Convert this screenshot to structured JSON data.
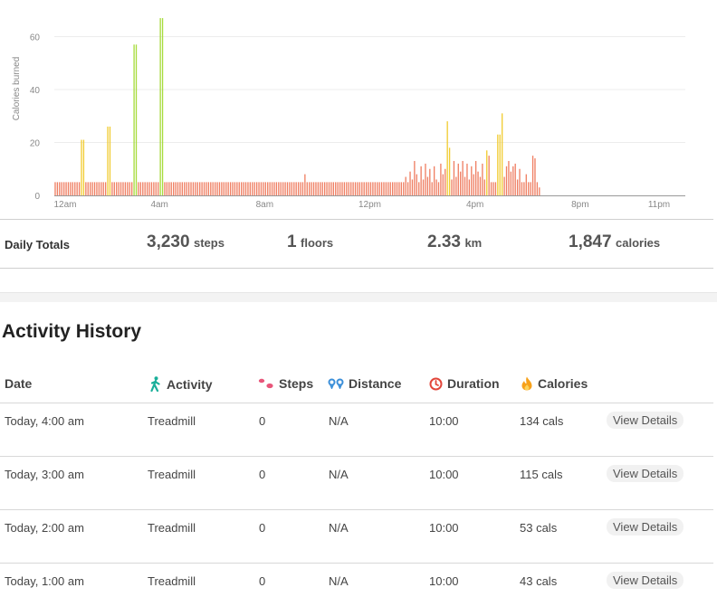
{
  "chart_data": {
    "type": "bar",
    "ylabel": "Calories burned",
    "xlabel": "",
    "ylim": [
      0,
      68
    ],
    "yticks": [
      0,
      20,
      40,
      60
    ],
    "xticks": [
      "12am",
      "4am",
      "8am",
      "12pm",
      "4pm",
      "8pm",
      "11pm"
    ],
    "interval_minutes": 5,
    "grid": true,
    "bars": [
      {
        "time": "0:00",
        "value": 5
      },
      {
        "time": "0:05",
        "value": 5
      },
      {
        "time": "0:10",
        "value": 5
      },
      {
        "time": "0:15",
        "value": 5
      },
      {
        "time": "0:20",
        "value": 5
      },
      {
        "time": "0:25",
        "value": 5
      },
      {
        "time": "0:30",
        "value": 5
      },
      {
        "time": "0:35",
        "value": 5
      },
      {
        "time": "0:40",
        "value": 5
      },
      {
        "time": "0:45",
        "value": 5
      },
      {
        "time": "0:50",
        "value": 5
      },
      {
        "time": "0:55",
        "value": 5
      },
      {
        "time": "1:00",
        "value": 21
      },
      {
        "time": "1:05",
        "value": 21
      },
      {
        "time": "1:10",
        "value": 5
      },
      {
        "time": "1:15",
        "value": 5
      },
      {
        "time": "1:20",
        "value": 5
      },
      {
        "time": "1:25",
        "value": 5
      },
      {
        "time": "1:30",
        "value": 5
      },
      {
        "time": "1:35",
        "value": 5
      },
      {
        "time": "1:40",
        "value": 5
      },
      {
        "time": "1:45",
        "value": 5
      },
      {
        "time": "1:50",
        "value": 5
      },
      {
        "time": "1:55",
        "value": 5
      },
      {
        "time": "2:00",
        "value": 26
      },
      {
        "time": "2:05",
        "value": 26
      },
      {
        "time": "2:10",
        "value": 5
      },
      {
        "time": "2:15",
        "value": 5
      },
      {
        "time": "2:20",
        "value": 5
      },
      {
        "time": "2:25",
        "value": 5
      },
      {
        "time": "2:30",
        "value": 5
      },
      {
        "time": "2:35",
        "value": 5
      },
      {
        "time": "2:40",
        "value": 5
      },
      {
        "time": "2:45",
        "value": 5
      },
      {
        "time": "2:50",
        "value": 5
      },
      {
        "time": "2:55",
        "value": 5
      },
      {
        "time": "3:00",
        "value": 57
      },
      {
        "time": "3:05",
        "value": 57
      },
      {
        "time": "3:10",
        "value": 5
      },
      {
        "time": "3:15",
        "value": 5
      },
      {
        "time": "3:20",
        "value": 5
      },
      {
        "time": "3:25",
        "value": 5
      },
      {
        "time": "3:30",
        "value": 5
      },
      {
        "time": "3:35",
        "value": 5
      },
      {
        "time": "3:40",
        "value": 5
      },
      {
        "time": "3:45",
        "value": 5
      },
      {
        "time": "3:50",
        "value": 5
      },
      {
        "time": "3:55",
        "value": 5
      },
      {
        "time": "4:00",
        "value": 67
      },
      {
        "time": "4:05",
        "value": 67
      },
      {
        "time": "4:10",
        "value": 5
      },
      {
        "time": "4:15",
        "value": 5
      },
      {
        "time": "4:20",
        "value": 5
      },
      {
        "time": "4:25",
        "value": 5
      },
      {
        "time": "4:30",
        "value": 5
      },
      {
        "time": "4:35",
        "value": 5
      },
      {
        "time": "4:40",
        "value": 5
      },
      {
        "time": "4:45",
        "value": 5
      },
      {
        "time": "4:50",
        "value": 5
      },
      {
        "time": "4:55",
        "value": 5
      },
      {
        "time": "5:00",
        "value": 5
      },
      {
        "time": "5:05",
        "value": 5
      },
      {
        "time": "5:10",
        "value": 5
      },
      {
        "time": "5:15",
        "value": 5
      },
      {
        "time": "5:20",
        "value": 5
      },
      {
        "time": "5:25",
        "value": 5
      },
      {
        "time": "5:30",
        "value": 5
      },
      {
        "time": "5:35",
        "value": 5
      },
      {
        "time": "5:40",
        "value": 5
      },
      {
        "time": "5:45",
        "value": 5
      },
      {
        "time": "5:50",
        "value": 5
      },
      {
        "time": "5:55",
        "value": 5
      },
      {
        "time": "6:00",
        "value": 5
      },
      {
        "time": "6:05",
        "value": 5
      },
      {
        "time": "6:10",
        "value": 5
      },
      {
        "time": "6:15",
        "value": 5
      },
      {
        "time": "6:20",
        "value": 5
      },
      {
        "time": "6:25",
        "value": 5
      },
      {
        "time": "6:30",
        "value": 5
      },
      {
        "time": "6:35",
        "value": 5
      },
      {
        "time": "6:40",
        "value": 5
      },
      {
        "time": "6:45",
        "value": 5
      },
      {
        "time": "6:50",
        "value": 5
      },
      {
        "time": "6:55",
        "value": 5
      },
      {
        "time": "7:00",
        "value": 5
      },
      {
        "time": "7:05",
        "value": 5
      },
      {
        "time": "7:10",
        "value": 5
      },
      {
        "time": "7:15",
        "value": 5
      },
      {
        "time": "7:20",
        "value": 5
      },
      {
        "time": "7:25",
        "value": 5
      },
      {
        "time": "7:30",
        "value": 5
      },
      {
        "time": "7:35",
        "value": 5
      },
      {
        "time": "7:40",
        "value": 5
      },
      {
        "time": "7:45",
        "value": 5
      },
      {
        "time": "7:50",
        "value": 5
      },
      {
        "time": "7:55",
        "value": 5
      },
      {
        "time": "8:00",
        "value": 5
      },
      {
        "time": "8:05",
        "value": 5
      },
      {
        "time": "8:10",
        "value": 5
      },
      {
        "time": "8:15",
        "value": 5
      },
      {
        "time": "8:20",
        "value": 5
      },
      {
        "time": "8:25",
        "value": 5
      },
      {
        "time": "8:30",
        "value": 5
      },
      {
        "time": "8:35",
        "value": 5
      },
      {
        "time": "8:40",
        "value": 5
      },
      {
        "time": "8:45",
        "value": 5
      },
      {
        "time": "8:50",
        "value": 5
      },
      {
        "time": "8:55",
        "value": 5
      },
      {
        "time": "9:00",
        "value": 5
      },
      {
        "time": "9:05",
        "value": 5
      },
      {
        "time": "9:10",
        "value": 5
      },
      {
        "time": "9:15",
        "value": 5
      },
      {
        "time": "9:20",
        "value": 5
      },
      {
        "time": "9:25",
        "value": 5
      },
      {
        "time": "9:30",
        "value": 8
      },
      {
        "time": "9:35",
        "value": 5
      },
      {
        "time": "9:40",
        "value": 5
      },
      {
        "time": "9:45",
        "value": 5
      },
      {
        "time": "9:50",
        "value": 5
      },
      {
        "time": "9:55",
        "value": 5
      },
      {
        "time": "10:00",
        "value": 5
      },
      {
        "time": "10:05",
        "value": 5
      },
      {
        "time": "10:10",
        "value": 5
      },
      {
        "time": "10:15",
        "value": 5
      },
      {
        "time": "10:20",
        "value": 5
      },
      {
        "time": "10:25",
        "value": 5
      },
      {
        "time": "10:30",
        "value": 5
      },
      {
        "time": "10:35",
        "value": 5
      },
      {
        "time": "10:40",
        "value": 5
      },
      {
        "time": "10:45",
        "value": 5
      },
      {
        "time": "10:50",
        "value": 5
      },
      {
        "time": "10:55",
        "value": 5
      },
      {
        "time": "11:00",
        "value": 5
      },
      {
        "time": "11:05",
        "value": 5
      },
      {
        "time": "11:10",
        "value": 5
      },
      {
        "time": "11:15",
        "value": 5
      },
      {
        "time": "11:20",
        "value": 5
      },
      {
        "time": "11:25",
        "value": 5
      },
      {
        "time": "11:30",
        "value": 5
      },
      {
        "time": "11:35",
        "value": 5
      },
      {
        "time": "11:40",
        "value": 5
      },
      {
        "time": "11:45",
        "value": 5
      },
      {
        "time": "11:50",
        "value": 5
      },
      {
        "time": "11:55",
        "value": 5
      },
      {
        "time": "12:00",
        "value": 5
      },
      {
        "time": "12:05",
        "value": 5
      },
      {
        "time": "12:10",
        "value": 5
      },
      {
        "time": "12:15",
        "value": 5
      },
      {
        "time": "12:20",
        "value": 5
      },
      {
        "time": "12:25",
        "value": 5
      },
      {
        "time": "12:30",
        "value": 5
      },
      {
        "time": "12:35",
        "value": 5
      },
      {
        "time": "12:40",
        "value": 5
      },
      {
        "time": "12:45",
        "value": 5
      },
      {
        "time": "12:50",
        "value": 5
      },
      {
        "time": "12:55",
        "value": 5
      },
      {
        "time": "13:00",
        "value": 5
      },
      {
        "time": "13:05",
        "value": 5
      },
      {
        "time": "13:10",
        "value": 5
      },
      {
        "time": "13:15",
        "value": 5
      },
      {
        "time": "13:20",
        "value": 7
      },
      {
        "time": "13:25",
        "value": 5
      },
      {
        "time": "13:30",
        "value": 9
      },
      {
        "time": "13:35",
        "value": 6
      },
      {
        "time": "13:40",
        "value": 13
      },
      {
        "time": "13:45",
        "value": 8
      },
      {
        "time": "13:50",
        "value": 5
      },
      {
        "time": "13:55",
        "value": 11
      },
      {
        "time": "14:00",
        "value": 6
      },
      {
        "time": "14:05",
        "value": 12
      },
      {
        "time": "14:10",
        "value": 7
      },
      {
        "time": "14:15",
        "value": 10
      },
      {
        "time": "14:20",
        "value": 5
      },
      {
        "time": "14:25",
        "value": 11
      },
      {
        "time": "14:30",
        "value": 6
      },
      {
        "time": "14:35",
        "value": 5
      },
      {
        "time": "14:40",
        "value": 12
      },
      {
        "time": "14:45",
        "value": 8
      },
      {
        "time": "14:50",
        "value": 10
      },
      {
        "time": "14:55",
        "value": 28
      },
      {
        "time": "15:00",
        "value": 18
      },
      {
        "time": "15:05",
        "value": 6
      },
      {
        "time": "15:10",
        "value": 13
      },
      {
        "time": "15:15",
        "value": 7
      },
      {
        "time": "15:20",
        "value": 12
      },
      {
        "time": "15:25",
        "value": 9
      },
      {
        "time": "15:30",
        "value": 13
      },
      {
        "time": "15:35",
        "value": 7
      },
      {
        "time": "15:40",
        "value": 12
      },
      {
        "time": "15:45",
        "value": 6
      },
      {
        "time": "15:50",
        "value": 11
      },
      {
        "time": "15:55",
        "value": 8
      },
      {
        "time": "16:00",
        "value": 13
      },
      {
        "time": "16:05",
        "value": 9
      },
      {
        "time": "16:10",
        "value": 7
      },
      {
        "time": "16:15",
        "value": 12
      },
      {
        "time": "16:20",
        "value": 6
      },
      {
        "time": "16:25",
        "value": 17
      },
      {
        "time": "16:30",
        "value": 15
      },
      {
        "time": "16:35",
        "value": 5
      },
      {
        "time": "16:40",
        "value": 5
      },
      {
        "time": "16:45",
        "value": 5
      },
      {
        "time": "16:50",
        "value": 23
      },
      {
        "time": "16:55",
        "value": 23
      },
      {
        "time": "17:00",
        "value": 31
      },
      {
        "time": "17:05",
        "value": 7
      },
      {
        "time": "17:10",
        "value": 11
      },
      {
        "time": "17:15",
        "value": 13
      },
      {
        "time": "17:20",
        "value": 9
      },
      {
        "time": "17:25",
        "value": 11
      },
      {
        "time": "17:30",
        "value": 12
      },
      {
        "time": "17:35",
        "value": 6
      },
      {
        "time": "17:40",
        "value": 10
      },
      {
        "time": "17:45",
        "value": 5
      },
      {
        "time": "17:50",
        "value": 5
      },
      {
        "time": "17:55",
        "value": 8
      },
      {
        "time": "18:00",
        "value": 5
      },
      {
        "time": "18:05",
        "value": 5
      },
      {
        "time": "18:10",
        "value": 15
      },
      {
        "time": "18:15",
        "value": 14
      },
      {
        "time": "18:20",
        "value": 5
      },
      {
        "time": "18:25",
        "value": 3
      },
      {
        "time": "18:30",
        "value": 0
      }
    ]
  },
  "colors": {
    "resting": "#ef7f63",
    "light": "#f1cc33",
    "active": "#a8dc3e",
    "grid": "#ececec",
    "tick": "#888888",
    "axis": "#999999"
  },
  "totals": {
    "label": "Daily Totals",
    "steps": {
      "value": "3,230",
      "unit": "steps"
    },
    "floors": {
      "value": "1",
      "unit": "floors"
    },
    "distance": {
      "value": "2.33",
      "unit": "km"
    },
    "calories": {
      "value": "1,847",
      "unit": "calories"
    }
  },
  "history": {
    "title": "Activity History",
    "headers": {
      "date": "Date",
      "activity": {
        "label": "Activity",
        "icon": "walking-person-icon"
      },
      "steps": {
        "label": "Steps",
        "icon": "footprints-icon"
      },
      "distance": {
        "label": "Distance",
        "icon": "location-pins-icon"
      },
      "duration": {
        "label": "Duration",
        "icon": "clock-icon"
      },
      "calories": {
        "label": "Calories",
        "icon": "flame-icon"
      }
    },
    "rows": [
      {
        "date": "Today, 4:00 am",
        "activity": "Treadmill",
        "steps": "0",
        "distance": "N/A",
        "duration": "10:00",
        "calories": "134 cals",
        "action": "View Details"
      },
      {
        "date": "Today, 3:00 am",
        "activity": "Treadmill",
        "steps": "0",
        "distance": "N/A",
        "duration": "10:00",
        "calories": "115 cals",
        "action": "View Details"
      },
      {
        "date": "Today, 2:00 am",
        "activity": "Treadmill",
        "steps": "0",
        "distance": "N/A",
        "duration": "10:00",
        "calories": "53 cals",
        "action": "View Details"
      },
      {
        "date": "Today, 1:00 am",
        "activity": "Treadmill",
        "steps": "0",
        "distance": "N/A",
        "duration": "10:00",
        "calories": "43 cals",
        "action": "View Details"
      }
    ]
  }
}
